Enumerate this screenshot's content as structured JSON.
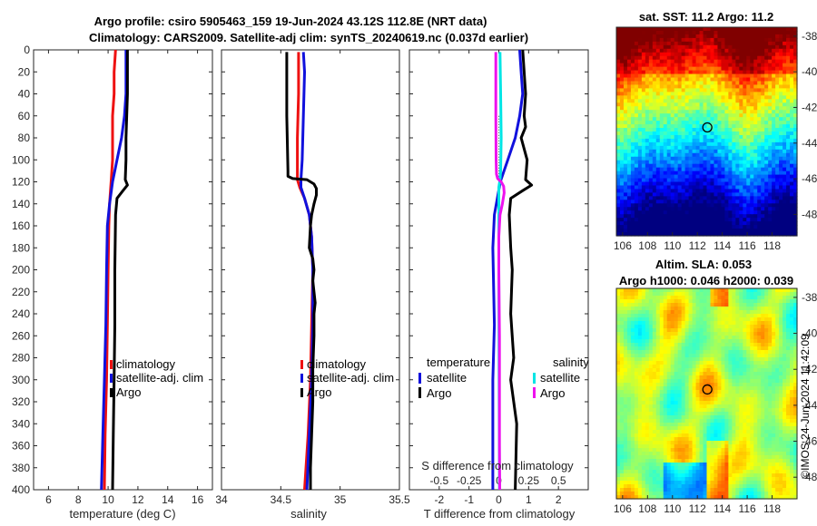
{
  "title": {
    "line1": "Argo profile: csiro 5905463_159 19-Jun-2024 43.12S 112.8E (NRT data)",
    "line2": "Climatology: CARS2009. Satellite-adj clim: synTS_20240619.nc (0.037d earlier)"
  },
  "chart_data": [
    {
      "type": "line",
      "name": "temperature profile",
      "xlabel": "temperature (deg C)",
      "ylabel": "depth",
      "xlim": [
        5,
        17
      ],
      "ylim": [
        0,
        400
      ],
      "x_ticks": [
        "6",
        "8",
        "10",
        "12",
        "14",
        "16"
      ],
      "x_tick_values": [
        6,
        8,
        10,
        12,
        14,
        16
      ],
      "y_ticks": [
        "0",
        "20",
        "40",
        "60",
        "80",
        "100",
        "120",
        "140",
        "160",
        "180",
        "200",
        "220",
        "240",
        "260",
        "280",
        "300",
        "320",
        "340",
        "360",
        "380",
        "400"
      ],
      "y_tick_values": [
        0,
        20,
        40,
        60,
        80,
        100,
        120,
        140,
        160,
        180,
        200,
        220,
        240,
        260,
        280,
        300,
        320,
        340,
        360,
        380,
        400
      ],
      "legend": [
        "climatology",
        "satellite-adj. clim",
        "Argo"
      ],
      "series": [
        {
          "name": "climatology",
          "color": "#ee1111",
          "points": [
            [
              10.5,
              0
            ],
            [
              10.4,
              20
            ],
            [
              10.4,
              40
            ],
            [
              10.3,
              60
            ],
            [
              10.3,
              80
            ],
            [
              10.3,
              100
            ],
            [
              10.2,
              120
            ],
            [
              10.1,
              140
            ],
            [
              10.05,
              160
            ],
            [
              10.0,
              200
            ],
            [
              9.95,
              250
            ],
            [
              9.9,
              300
            ],
            [
              9.8,
              350
            ],
            [
              9.75,
              400
            ]
          ]
        },
        {
          "name": "satellite-adj. clim",
          "color": "#1111dd",
          "points": [
            [
              11.2,
              0
            ],
            [
              11.2,
              20
            ],
            [
              11.2,
              40
            ],
            [
              11.1,
              60
            ],
            [
              10.9,
              80
            ],
            [
              10.6,
              100
            ],
            [
              10.3,
              120
            ],
            [
              10.1,
              140
            ],
            [
              9.95,
              160
            ],
            [
              9.9,
              200
            ],
            [
              9.85,
              250
            ],
            [
              9.75,
              300
            ],
            [
              9.65,
              350
            ],
            [
              9.55,
              400
            ]
          ]
        },
        {
          "name": "Argo",
          "color": "#000000",
          "points": [
            [
              11.3,
              0
            ],
            [
              11.3,
              40
            ],
            [
              11.25,
              60
            ],
            [
              11.2,
              80
            ],
            [
              11.2,
              100
            ],
            [
              11.15,
              118
            ],
            [
              11.3,
              123
            ],
            [
              11.0,
              128
            ],
            [
              10.6,
              135
            ],
            [
              10.5,
              150
            ],
            [
              10.45,
              200
            ],
            [
              10.45,
              250
            ],
            [
              10.4,
              300
            ],
            [
              10.35,
              350
            ],
            [
              10.3,
              400
            ]
          ]
        }
      ]
    },
    {
      "type": "line",
      "name": "salinity profile",
      "xlabel": "salinity",
      "xlim": [
        34,
        35.5
      ],
      "ylim": [
        0,
        400
      ],
      "x_ticks": [
        "34",
        "34.5",
        "35",
        "35.5"
      ],
      "x_tick_values": [
        34,
        34.5,
        35,
        35.5
      ],
      "legend": [
        "climatology",
        "satellite-adj. clim",
        "Argo"
      ],
      "series": [
        {
          "name": "climatology",
          "color": "#ee1111",
          "points": [
            [
              34.65,
              2
            ],
            [
              34.65,
              40
            ],
            [
              34.64,
              80
            ],
            [
              34.64,
              110
            ],
            [
              34.64,
              118
            ],
            [
              34.66,
              125
            ],
            [
              34.7,
              135
            ],
            [
              34.74,
              150
            ],
            [
              34.76,
              170
            ],
            [
              34.77,
              200
            ],
            [
              34.76,
              250
            ],
            [
              34.75,
              300
            ],
            [
              34.73,
              350
            ],
            [
              34.7,
              400
            ]
          ]
        },
        {
          "name": "satellite-adj. clim",
          "color": "#1111dd",
          "points": [
            [
              34.69,
              2
            ],
            [
              34.7,
              20
            ],
            [
              34.69,
              60
            ],
            [
              34.68,
              100
            ],
            [
              34.67,
              118
            ],
            [
              34.67,
              125
            ],
            [
              34.7,
              135
            ],
            [
              34.74,
              150
            ],
            [
              34.76,
              170
            ],
            [
              34.77,
              200
            ],
            [
              34.77,
              250
            ],
            [
              34.76,
              300
            ],
            [
              34.74,
              350
            ],
            [
              34.72,
              400
            ]
          ]
        },
        {
          "name": "Argo",
          "color": "#000000",
          "points": [
            [
              34.55,
              2
            ],
            [
              34.55,
              60
            ],
            [
              34.56,
              110
            ],
            [
              34.56,
              115
            ],
            [
              34.6,
              117
            ],
            [
              34.72,
              118
            ],
            [
              34.78,
              122
            ],
            [
              34.8,
              126
            ],
            [
              34.8,
              132
            ],
            [
              34.78,
              140
            ],
            [
              34.76,
              150
            ],
            [
              34.75,
              160
            ],
            [
              34.74,
              180
            ],
            [
              34.77,
              190
            ],
            [
              34.78,
              200
            ],
            [
              34.77,
              210
            ],
            [
              34.78,
              220
            ],
            [
              34.79,
              230
            ],
            [
              34.78,
              240
            ],
            [
              34.78,
              260
            ],
            [
              34.77,
              290
            ],
            [
              34.77,
              320
            ],
            [
              34.76,
              350
            ],
            [
              34.75,
              380
            ],
            [
              34.75,
              400
            ]
          ]
        }
      ]
    },
    {
      "type": "line",
      "name": "difference from climatology",
      "xlabel": "T difference from climatology",
      "x2label": "S difference from climatology",
      "xlim": [
        -3,
        3
      ],
      "x2lim": [
        -0.75,
        0.75
      ],
      "ylim": [
        0,
        400
      ],
      "x_ticks": [
        "-2",
        "-1",
        "0",
        "1",
        "2"
      ],
      "x_tick_values": [
        -2,
        -1,
        0,
        1,
        2
      ],
      "x2_ticks": [
        "-0.5",
        "-0.25",
        "0",
        "0.25",
        "0.5"
      ],
      "x2_tick_values": [
        -0.5,
        -0.25,
        0,
        0.25,
        0.5
      ],
      "legend_left_title": "temperature",
      "legend_right_title": "salinity",
      "legend_left": [
        "satellite",
        "Argo"
      ],
      "legend_right": [
        "satellite",
        "Argo"
      ],
      "series": [
        {
          "name": "temperature satellite",
          "color": "#1111dd",
          "points": [
            [
              0.7,
              0
            ],
            [
              0.75,
              20
            ],
            [
              0.8,
              40
            ],
            [
              0.7,
              60
            ],
            [
              0.55,
              80
            ],
            [
              0.3,
              100
            ],
            [
              0.05,
              120
            ],
            [
              -0.15,
              150
            ],
            [
              -0.2,
              180
            ],
            [
              -0.15,
              250
            ],
            [
              -0.2,
              300
            ],
            [
              -0.2,
              400
            ]
          ]
        },
        {
          "name": "temperature Argo",
          "color": "#000000",
          "points": [
            [
              0.8,
              0
            ],
            [
              0.85,
              20
            ],
            [
              0.9,
              40
            ],
            [
              0.85,
              60
            ],
            [
              0.9,
              70
            ],
            [
              0.75,
              80
            ],
            [
              0.95,
              100
            ],
            [
              0.9,
              118
            ],
            [
              1.1,
              123
            ],
            [
              0.8,
              128
            ],
            [
              0.4,
              135
            ],
            [
              0.35,
              150
            ],
            [
              0.4,
              180
            ],
            [
              0.45,
              200
            ],
            [
              0.4,
              240
            ],
            [
              0.5,
              280
            ],
            [
              0.4,
              300
            ],
            [
              0.6,
              340
            ],
            [
              0.55,
              400
            ]
          ]
        },
        {
          "name": "salinity satellite",
          "color": "#00e5e5",
          "points": [
            [
              0.04,
              2
            ],
            [
              0.06,
              40
            ],
            [
              0.08,
              80
            ],
            [
              0.06,
              110
            ],
            [
              0.04,
              118
            ],
            [
              0.0,
              125
            ],
            [
              0.0,
              140
            ],
            [
              0.0,
              200
            ],
            [
              0.01,
              300
            ],
            [
              0.02,
              400
            ]
          ]
        },
        {
          "name": "salinity Argo",
          "color": "#ee11ee",
          "points": [
            [
              -0.1,
              2
            ],
            [
              -0.1,
              60
            ],
            [
              -0.09,
              100
            ],
            [
              -0.08,
              113
            ],
            [
              -0.04,
              117
            ],
            [
              0.08,
              120
            ],
            [
              0.16,
              124
            ],
            [
              0.18,
              130
            ],
            [
              0.12,
              140
            ],
            [
              0.04,
              150
            ],
            [
              0.0,
              170
            ],
            [
              0.0,
              200
            ],
            [
              0.02,
              260
            ],
            [
              0.02,
              320
            ],
            [
              0.02,
              360
            ],
            [
              0.03,
              400
            ]
          ]
        }
      ]
    }
  ],
  "sst_map": {
    "title": "sat. SST: 11.2 Argo: 11.2",
    "x_ticks": [
      "106",
      "108",
      "110",
      "112",
      "114",
      "116",
      "118"
    ],
    "x_tick_values": [
      106,
      108,
      110,
      112,
      114,
      116,
      118
    ],
    "y_ticks": [
      "-38",
      "-40",
      "-42",
      "-44",
      "-46",
      "-48"
    ],
    "y_tick_values": [
      -38,
      -40,
      -42,
      -44,
      -46,
      -48
    ],
    "xlim": [
      105.5,
      120
    ],
    "ylim": [
      -49.2,
      -37.5
    ],
    "marker": {
      "lon": 112.8,
      "lat": -43.12
    },
    "colors": {
      "warm": "#aa0000",
      "mid": "#22bb22",
      "cold": "#0a1a8a"
    }
  },
  "sla_map": {
    "title1": "Altim. SLA: 0.053",
    "title2": "Argo h1000: 0.046 h2000: 0.039",
    "x_ticks": [
      "106",
      "108",
      "110",
      "112",
      "114",
      "116",
      "118"
    ],
    "x_tick_values": [
      106,
      108,
      110,
      112,
      114,
      116,
      118
    ],
    "y_ticks": [
      "-38",
      "-40",
      "-42",
      "-44",
      "-46",
      "-48"
    ],
    "y_tick_values": [
      -38,
      -40,
      -42,
      -44,
      -46,
      -48
    ],
    "xlim": [
      105.5,
      120
    ],
    "ylim": [
      -49.2,
      -37.5
    ],
    "marker": {
      "lon": 112.8,
      "lat": -43.12
    }
  },
  "footer": "©IMOS 24-Jun-2024 11:42:09"
}
